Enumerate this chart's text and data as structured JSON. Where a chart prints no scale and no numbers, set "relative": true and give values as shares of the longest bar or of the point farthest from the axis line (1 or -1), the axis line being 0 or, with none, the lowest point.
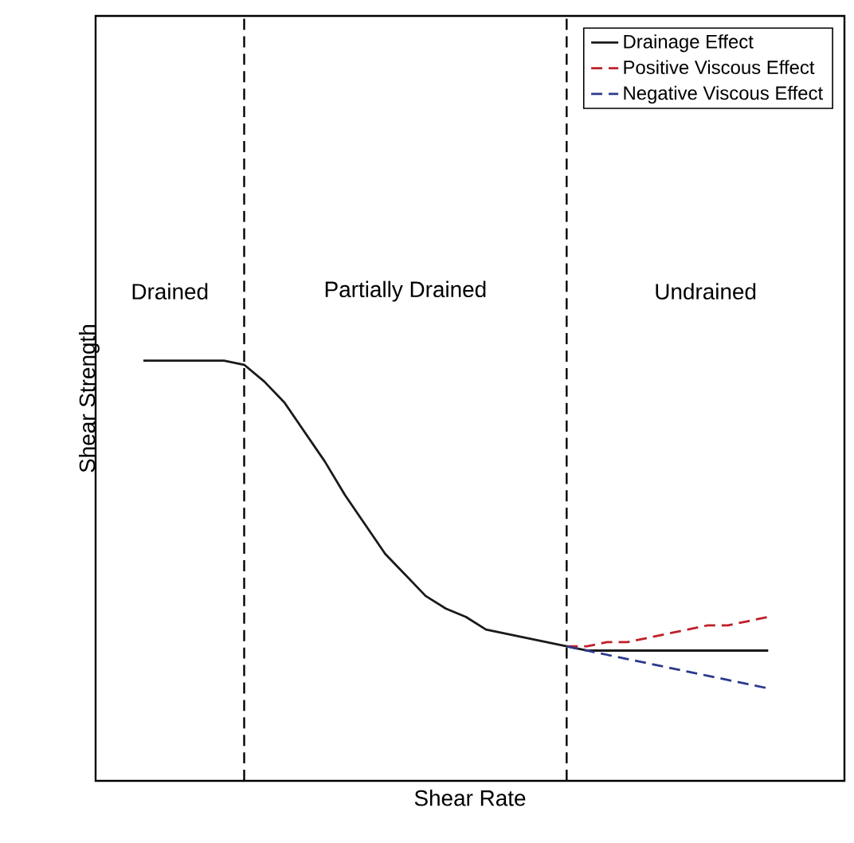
{
  "chart_data": {
    "type": "line",
    "relative": true,
    "xlabel": "Shear Rate",
    "ylabel": "Shear Strength",
    "legend": "top right",
    "categories": [
      null,
      null,
      null,
      null,
      null,
      null,
      null,
      null,
      null,
      null,
      null,
      null,
      null,
      null,
      null,
      null,
      null,
      null,
      null,
      null,
      null,
      null,
      null,
      null,
      null,
      null,
      null,
      null,
      null,
      null,
      null,
      null
    ],
    "series": [
      {
        "name": "Drainage Effect",
        "color": "#1a1a1a",
        "line_style": "solid",
        "values": [
          1,
          1,
          1,
          1,
          1,
          0.99,
          0.95,
          0.9,
          0.83,
          0.76,
          0.68,
          0.61,
          0.54,
          0.49,
          0.44,
          0.41,
          0.39,
          0.36,
          0.35,
          0.34,
          0.33,
          0.32,
          0.31,
          0.31,
          0.31,
          0.31,
          0.31,
          0.31,
          0.31,
          0.31,
          0.31,
          0.31
        ]
      },
      {
        "name": "Positive Viscous Effect",
        "color": "#c0202a",
        "line_style": "dashed",
        "values": [
          null,
          null,
          null,
          null,
          null,
          null,
          null,
          null,
          null,
          null,
          null,
          null,
          null,
          null,
          null,
          null,
          null,
          null,
          null,
          null,
          null,
          0.32,
          0.32,
          0.33,
          0.33,
          0.34,
          0.35,
          0.36,
          0.37,
          0.37,
          0.38,
          0.39
        ]
      },
      {
        "name": "Negative Viscous Effect",
        "color": "#2b3a8c",
        "line_style": "dashed",
        "values": [
          null,
          null,
          null,
          null,
          null,
          null,
          null,
          null,
          null,
          null,
          null,
          null,
          null,
          null,
          null,
          null,
          null,
          null,
          null,
          null,
          null,
          0.32,
          0.31,
          0.3,
          0.29,
          0.28,
          0.27,
          0.26,
          0.25,
          0.24,
          0.23,
          0.22
        ]
      }
    ],
    "annotations": [
      "Drained",
      "Partially Drained",
      "Undrained"
    ]
  }
}
